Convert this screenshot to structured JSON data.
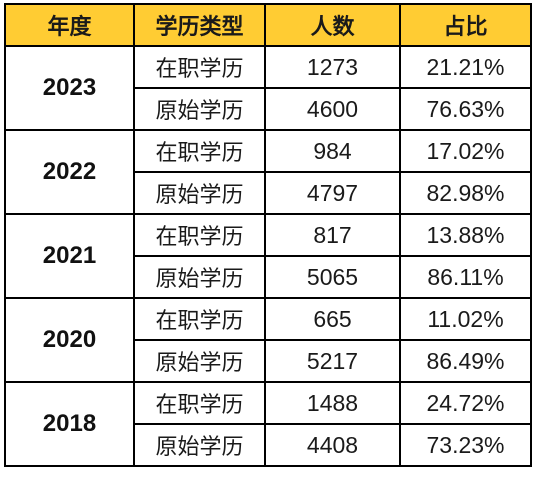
{
  "colors": {
    "header_bg": "#ffcc33",
    "border": "#000000",
    "text": "#1a1a1a"
  },
  "header": {
    "year": "年度",
    "type": "学历类型",
    "count": "人数",
    "share": "占比"
  },
  "rows": [
    {
      "year": "2023",
      "entries": [
        {
          "type": "在职学历",
          "count": "1273",
          "share": "21.21%"
        },
        {
          "type": "原始学历",
          "count": "4600",
          "share": "76.63%"
        }
      ]
    },
    {
      "year": "2022",
      "entries": [
        {
          "type": "在职学历",
          "count": "984",
          "share": "17.02%"
        },
        {
          "type": "原始学历",
          "count": "4797",
          "share": "82.98%"
        }
      ]
    },
    {
      "year": "2021",
      "entries": [
        {
          "type": "在职学历",
          "count": "817",
          "share": "13.88%"
        },
        {
          "type": "原始学历",
          "count": "5065",
          "share": "86.11%"
        }
      ]
    },
    {
      "year": "2020",
      "entries": [
        {
          "type": "在职学历",
          "count": "665",
          "share": "11.02%"
        },
        {
          "type": "原始学历",
          "count": "5217",
          "share": "86.49%"
        }
      ]
    },
    {
      "year": "2018",
      "entries": [
        {
          "type": "在职学历",
          "count": "1488",
          "share": "24.72%"
        },
        {
          "type": "原始学历",
          "count": "4408",
          "share": "73.23%"
        }
      ]
    }
  ]
}
